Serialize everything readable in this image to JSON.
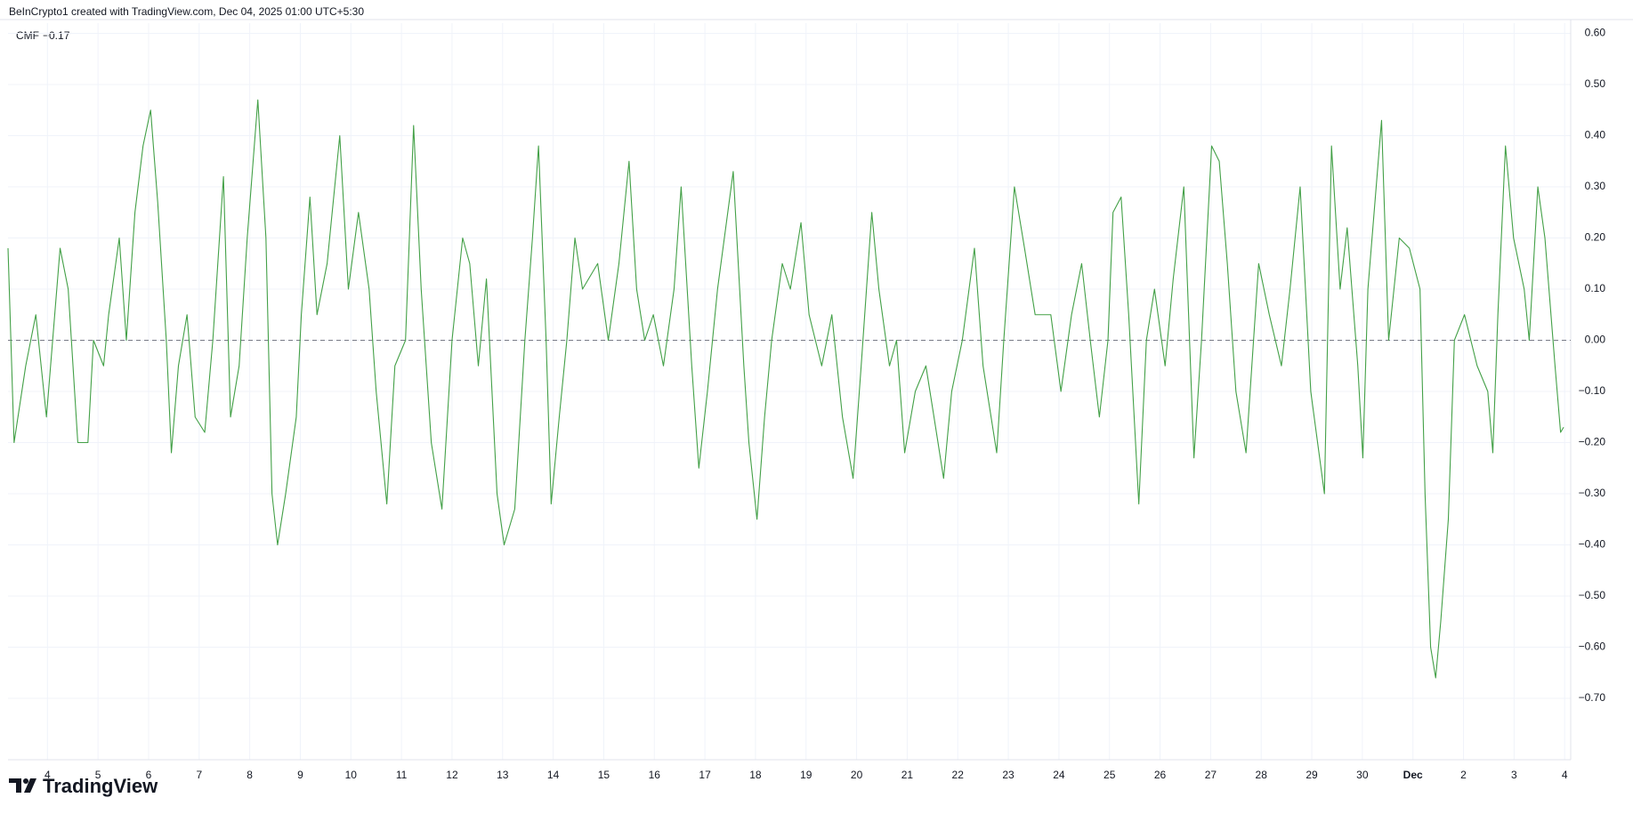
{
  "attribution": "BeInCrypto1 created with TradingView.com, Dec 04, 2025 01:00 UTC+5:30",
  "brand": "TradingView",
  "chart_data": {
    "type": "line",
    "current_value": {
      "value": -0.17,
      "label": "−0.17"
    },
    "reference_line": 0,
    "grid": true,
    "xlim": [
      -0.78,
      30.12
    ],
    "ylim": [
      -0.82,
      0.62
    ],
    "xticks": [
      {
        "value": 0,
        "label": "4"
      },
      {
        "value": 1,
        "label": "5"
      },
      {
        "value": 2,
        "label": "6"
      },
      {
        "value": 3,
        "label": "7"
      },
      {
        "value": 4,
        "label": "8"
      },
      {
        "value": 5,
        "label": "9"
      },
      {
        "value": 6,
        "label": "10"
      },
      {
        "value": 7,
        "label": "11"
      },
      {
        "value": 8,
        "label": "12"
      },
      {
        "value": 9,
        "label": "13"
      },
      {
        "value": 10,
        "label": "14"
      },
      {
        "value": 11,
        "label": "15"
      },
      {
        "value": 12,
        "label": "16"
      },
      {
        "value": 13,
        "label": "17"
      },
      {
        "value": 14,
        "label": "18"
      },
      {
        "value": 15,
        "label": "19"
      },
      {
        "value": 16,
        "label": "20"
      },
      {
        "value": 17,
        "label": "21"
      },
      {
        "value": 18,
        "label": "22"
      },
      {
        "value": 19,
        "label": "23"
      },
      {
        "value": 20,
        "label": "24"
      },
      {
        "value": 21,
        "label": "25"
      },
      {
        "value": 22,
        "label": "26"
      },
      {
        "value": 23,
        "label": "27"
      },
      {
        "value": 24,
        "label": "28"
      },
      {
        "value": 25,
        "label": "29"
      },
      {
        "value": 26,
        "label": "30"
      },
      {
        "value": 27,
        "label": "Dec"
      },
      {
        "value": 28,
        "label": "2"
      },
      {
        "value": 29,
        "label": "3"
      },
      {
        "value": 30,
        "label": "4"
      }
    ],
    "yticks": [
      {
        "value": 0.6,
        "label": "0.60"
      },
      {
        "value": 0.5,
        "label": "0.50"
      },
      {
        "value": 0.4,
        "label": "0.40"
      },
      {
        "value": 0.3,
        "label": "0.30"
      },
      {
        "value": 0.2,
        "label": "0.20"
      },
      {
        "value": 0.1,
        "label": "0.10"
      },
      {
        "value": 0,
        "label": "0.00"
      },
      {
        "value": -0.1,
        "label": "−0.10"
      },
      {
        "value": -0.2,
        "label": "−0.20"
      },
      {
        "value": -0.3,
        "label": "−0.30"
      },
      {
        "value": -0.4,
        "label": "−0.40"
      },
      {
        "value": -0.5,
        "label": "−0.50"
      },
      {
        "value": -0.6,
        "label": "−0.60"
      },
      {
        "value": -0.7,
        "label": "−0.70"
      }
    ],
    "series": [
      {
        "name": "CMF",
        "color": "#43a047",
        "x": [
          -0.78,
          -0.66,
          -0.43,
          -0.23,
          -0.02,
          0.25,
          0.41,
          0.6,
          0.8,
          0.91,
          1.11,
          1.21,
          1.42,
          1.56,
          1.73,
          1.89,
          2.04,
          2.18,
          2.35,
          2.45,
          2.59,
          2.76,
          2.92,
          3.11,
          3.27,
          3.48,
          3.62,
          3.79,
          3.95,
          4.16,
          4.32,
          4.44,
          4.55,
          4.71,
          4.92,
          5.02,
          5.19,
          5.33,
          5.53,
          5.78,
          5.95,
          6.15,
          6.36,
          6.5,
          6.71,
          6.87,
          7.08,
          7.24,
          7.39,
          7.59,
          7.8,
          8.0,
          8.21,
          8.35,
          8.52,
          8.68,
          8.89,
          9.03,
          9.24,
          9.44,
          9.59,
          9.71,
          9.86,
          9.96,
          10.12,
          10.27,
          10.43,
          10.58,
          10.88,
          11.09,
          11.3,
          11.5,
          11.65,
          11.81,
          11.98,
          12.18,
          12.39,
          12.53,
          12.74,
          12.88,
          13.05,
          13.25,
          13.56,
          13.77,
          13.87,
          14.03,
          14.18,
          14.32,
          14.53,
          14.69,
          14.9,
          15.06,
          15.31,
          15.51,
          15.72,
          15.93,
          16.09,
          16.3,
          16.44,
          16.65,
          16.79,
          16.95,
          17.16,
          17.37,
          17.53,
          17.72,
          17.88,
          18.09,
          18.33,
          18.5,
          18.77,
          18.91,
          19.12,
          19.32,
          19.53,
          19.84,
          20.04,
          20.25,
          20.45,
          20.62,
          20.8,
          20.97,
          21.07,
          21.23,
          21.38,
          21.58,
          21.73,
          21.89,
          22.1,
          22.26,
          22.47,
          22.67,
          22.82,
          23.02,
          23.17,
          23.33,
          23.5,
          23.7,
          23.95,
          24.16,
          24.4,
          24.57,
          24.77,
          24.98,
          25.25,
          25.39,
          25.56,
          25.7,
          25.91,
          26.01,
          26.11,
          26.38,
          26.52,
          26.73,
          26.93,
          27.14,
          27.24,
          27.35,
          27.45,
          27.55,
          27.7,
          27.82,
          28.02,
          28.27,
          28.48,
          28.58,
          28.68,
          28.83,
          28.99,
          29.2,
          29.3,
          29.47,
          29.61,
          29.81,
          29.92,
          29.98
        ],
        "values": [
          0.18,
          -0.2,
          -0.05,
          0.05,
          -0.15,
          0.18,
          0.1,
          -0.2,
          -0.2,
          0.0,
          -0.05,
          0.05,
          0.2,
          0.0,
          0.25,
          0.38,
          0.45,
          0.27,
          0.0,
          -0.22,
          -0.05,
          0.05,
          -0.15,
          -0.18,
          0.0,
          0.32,
          -0.15,
          -0.05,
          0.2,
          0.47,
          0.2,
          -0.3,
          -0.4,
          -0.3,
          -0.15,
          0.05,
          0.28,
          0.05,
          0.15,
          0.4,
          0.1,
          0.25,
          0.1,
          -0.1,
          -0.32,
          -0.05,
          0.0,
          0.42,
          0.1,
          -0.2,
          -0.33,
          0.0,
          0.2,
          0.15,
          -0.05,
          0.12,
          -0.3,
          -0.4,
          -0.33,
          0.0,
          0.2,
          0.38,
          0.0,
          -0.32,
          -0.15,
          0.0,
          0.2,
          0.1,
          0.15,
          0.0,
          0.15,
          0.35,
          0.1,
          0.0,
          0.05,
          -0.05,
          0.1,
          0.3,
          -0.05,
          -0.25,
          -0.1,
          0.1,
          0.33,
          -0.05,
          -0.2,
          -0.35,
          -0.15,
          0.0,
          0.15,
          0.1,
          0.23,
          0.05,
          -0.05,
          0.05,
          -0.15,
          -0.27,
          -0.05,
          0.25,
          0.1,
          -0.05,
          0.0,
          -0.22,
          -0.1,
          -0.05,
          -0.15,
          -0.27,
          -0.1,
          0.0,
          0.18,
          -0.05,
          -0.22,
          0.0,
          0.3,
          0.18,
          0.05,
          0.05,
          -0.1,
          0.05,
          0.15,
          0.0,
          -0.15,
          0.0,
          0.25,
          0.28,
          0.05,
          -0.32,
          0.0,
          0.1,
          -0.05,
          0.12,
          0.3,
          -0.23,
          0.0,
          0.38,
          0.35,
          0.15,
          -0.1,
          -0.22,
          0.15,
          0.05,
          -0.05,
          0.1,
          0.3,
          -0.1,
          -0.3,
          0.38,
          0.1,
          0.22,
          -0.05,
          -0.23,
          0.1,
          0.43,
          0.0,
          0.2,
          0.18,
          0.1,
          -0.3,
          -0.6,
          -0.66,
          -0.55,
          -0.35,
          0.0,
          0.05,
          -0.05,
          -0.1,
          -0.22,
          0.05,
          0.38,
          0.2,
          0.1,
          0.0,
          0.3,
          0.2,
          -0.05,
          -0.18,
          -0.17
        ]
      }
    ]
  }
}
